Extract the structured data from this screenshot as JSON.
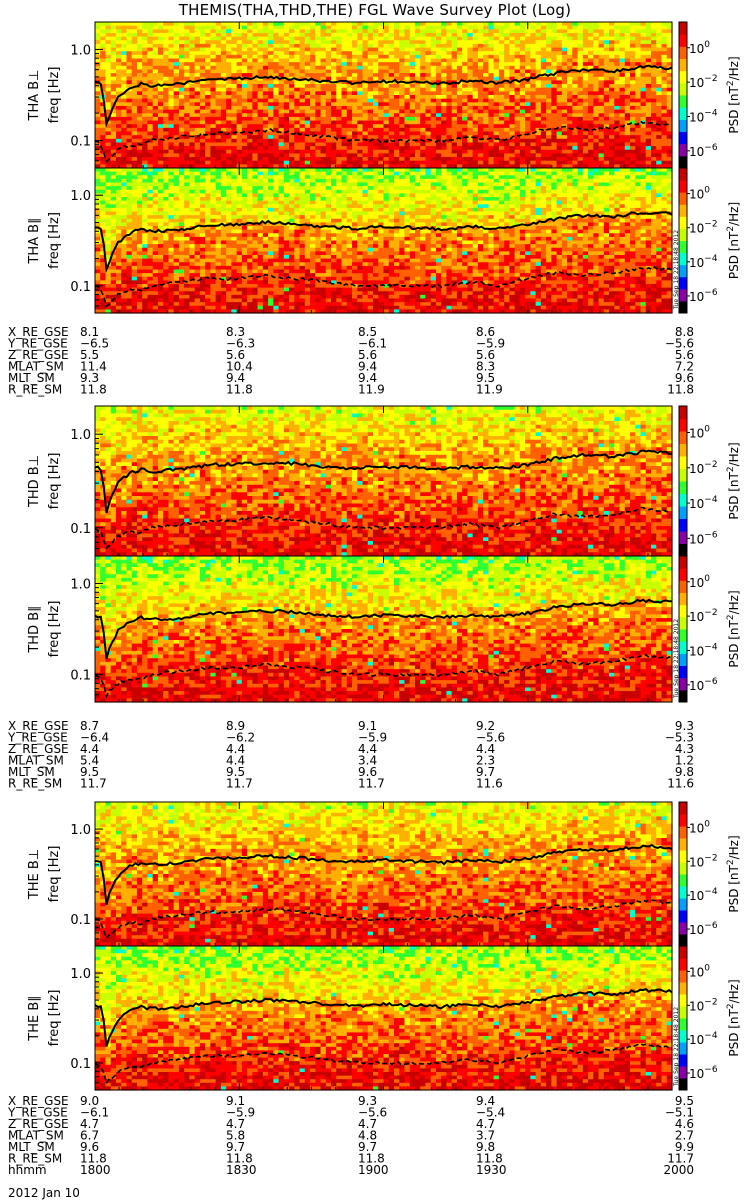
{
  "title": "THEMIS(THA,THD,THE) FGL Wave Survey Plot (Log)",
  "timestamp_vertical": "Tue Sep 18 22:18:48 2012",
  "colors": {
    "colormap": [
      "#000000",
      "#8a00a8",
      "#0000ff",
      "#00a0ff",
      "#00ffd0",
      "#30ff30",
      "#c8ff00",
      "#ffff00",
      "#ffb000",
      "#ff6000",
      "#ff0000",
      "#c80000"
    ],
    "curve": "#000000",
    "frame": "#000000"
  },
  "colorbar": {
    "label_html": "PSD [nT²/Hz]",
    "label_base": "PSD [nT",
    "label_sup": "2",
    "label_tail": "/Hz]",
    "ticks": [
      {
        "exp": "0",
        "value": 1
      },
      {
        "exp": "-2",
        "value": 0.01
      },
      {
        "exp": "-4",
        "value": 0.0001
      },
      {
        "exp": "-6",
        "value": 1e-06
      }
    ],
    "range_log": [
      -7,
      1.5
    ]
  },
  "chart_data": {
    "type": "heatmap",
    "x_ticks": [
      "1800",
      "1830",
      "1900",
      "1930",
      "2000"
    ],
    "y_axis": {
      "scale": "log",
      "range": [
        0.05,
        2.0
      ],
      "ticks": [
        "1.0",
        "0.1"
      ],
      "label": "freq [Hz]"
    },
    "panels": [
      {
        "probe": "THA",
        "component": "B⊥",
        "ylabel": "THA B⊥",
        "seed": 11
      },
      {
        "probe": "THA",
        "component": "B∥",
        "ylabel": "THA B∥",
        "seed": 23
      },
      {
        "probe": "THD",
        "component": "B⊥",
        "ylabel": "THD B⊥",
        "seed": 37
      },
      {
        "probe": "THD",
        "component": "B∥",
        "ylabel": "THD B∥",
        "seed": 51
      },
      {
        "probe": "THE",
        "component": "B⊥",
        "ylabel": "THE B⊥",
        "seed": 67
      },
      {
        "probe": "THE",
        "component": "B∥",
        "ylabel": "THE B∥",
        "seed": 83
      }
    ],
    "solid_curve_hz": {
      "x": [
        0,
        0.01,
        0.02,
        0.04,
        0.06,
        0.08,
        0.1,
        0.15,
        0.2,
        0.25,
        0.3,
        0.35,
        0.4,
        0.45,
        0.5,
        0.55,
        0.6,
        0.65,
        0.7,
        0.75,
        0.8,
        0.85,
        0.9,
        0.95,
        1.0
      ],
      "y": [
        0.45,
        0.42,
        0.15,
        0.3,
        0.38,
        0.42,
        0.4,
        0.42,
        0.47,
        0.48,
        0.5,
        0.48,
        0.45,
        0.43,
        0.45,
        0.44,
        0.42,
        0.45,
        0.43,
        0.47,
        0.55,
        0.6,
        0.58,
        0.65,
        0.62
      ]
    },
    "dashed_curve_hz": {
      "x": [
        0,
        0.01,
        0.02,
        0.04,
        0.06,
        0.08,
        0.1,
        0.15,
        0.2,
        0.25,
        0.3,
        0.35,
        0.4,
        0.45,
        0.5,
        0.55,
        0.6,
        0.65,
        0.7,
        0.75,
        0.8,
        0.85,
        0.9,
        0.95,
        1.0
      ],
      "y": [
        0.1,
        0.09,
        0.06,
        0.08,
        0.09,
        0.09,
        0.1,
        0.11,
        0.12,
        0.12,
        0.13,
        0.12,
        0.11,
        0.1,
        0.1,
        0.1,
        0.1,
        0.11,
        0.1,
        0.12,
        0.14,
        0.13,
        0.14,
        0.16,
        0.15
      ]
    }
  },
  "orbit_tables": [
    {
      "rows": [
        {
          "label": "X_RE_GSE",
          "values": [
            "8.1",
            "8.3",
            "8.5",
            "8.6",
            "8.8"
          ]
        },
        {
          "label": "Y_RE_GSE",
          "values": [
            "−6.5",
            "−6.3",
            "−6.1",
            "−5.9",
            "−5.6"
          ]
        },
        {
          "label": "Z_RE_GSE",
          "values": [
            "5.5",
            "5.6",
            "5.6",
            "5.6",
            "5.6"
          ]
        },
        {
          "label": "MLAT_SM",
          "values": [
            "11.4",
            "10.4",
            "9.4",
            "8.3",
            "7.2"
          ]
        },
        {
          "label": "MLT_SM",
          "values": [
            "9.3",
            "9.4",
            "9.4",
            "9.5",
            "9.6"
          ]
        },
        {
          "label": "R_RE_SM",
          "values": [
            "11.8",
            "11.8",
            "11.9",
            "11.9",
            "11.8"
          ]
        }
      ]
    },
    {
      "rows": [
        {
          "label": "X_RE_GSE",
          "values": [
            "8.7",
            "8.9",
            "9.1",
            "9.2",
            "9.3"
          ]
        },
        {
          "label": "Y_RE_GSE",
          "values": [
            "−6.4",
            "−6.2",
            "−5.9",
            "−5.6",
            "−5.3"
          ]
        },
        {
          "label": "Z_RE_GSE",
          "values": [
            "4.4",
            "4.4",
            "4.4",
            "4.4",
            "4.3"
          ]
        },
        {
          "label": "MLAT_SM",
          "values": [
            "5.4",
            "4.4",
            "3.4",
            "2.3",
            "1.2"
          ]
        },
        {
          "label": "MLT_SM",
          "values": [
            "9.5",
            "9.5",
            "9.6",
            "9.7",
            "9.8"
          ]
        },
        {
          "label": "R_RE_SM",
          "values": [
            "11.7",
            "11.7",
            "11.7",
            "11.6",
            "11.6"
          ]
        }
      ]
    },
    {
      "rows": [
        {
          "label": "X_RE_GSE",
          "values": [
            "9.0",
            "9.1",
            "9.3",
            "9.4",
            "9.5"
          ]
        },
        {
          "label": "Y_RE_GSE",
          "values": [
            "−6.1",
            "−5.9",
            "−5.6",
            "−5.4",
            "−5.1"
          ]
        },
        {
          "label": "Z_RE_GSE",
          "values": [
            "4.7",
            "4.7",
            "4.7",
            "4.7",
            "4.6"
          ]
        },
        {
          "label": "MLAT_SM",
          "values": [
            "6.7",
            "5.8",
            "4.8",
            "3.7",
            "2.7"
          ]
        },
        {
          "label": "MLT_SM",
          "values": [
            "9.6",
            "9.7",
            "9.7",
            "9.8",
            "9.9"
          ]
        },
        {
          "label": "R_RE_SM",
          "values": [
            "11.8",
            "11.8",
            "11.8",
            "11.8",
            "11.7"
          ]
        },
        {
          "label": "hhmm",
          "values": [
            "1800",
            "1830",
            "1900",
            "1930",
            "2000"
          ]
        }
      ]
    }
  ],
  "date_label": "2012 Jan 10"
}
